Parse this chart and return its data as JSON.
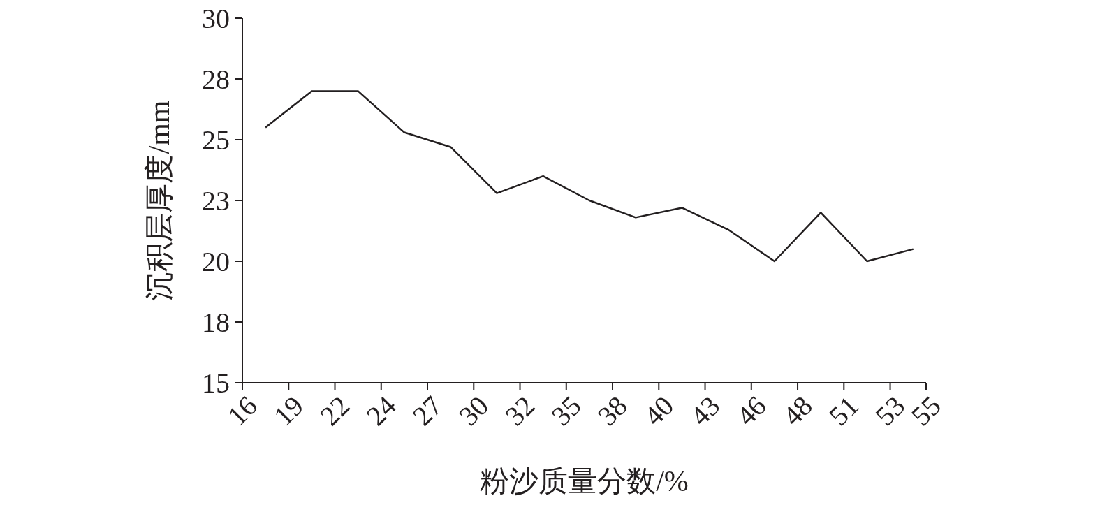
{
  "chart_data": {
    "type": "line",
    "xlabel": "粉沙质量分数/%",
    "ylabel": "沉积层厚度/mm",
    "color": "#231f20",
    "x": [
      17.8,
      20.44,
      23.08,
      25.72,
      28.36,
      31.0,
      33.64,
      36.28,
      38.92,
      41.56,
      44.2,
      46.84,
      49.48,
      52.12,
      54.76
    ],
    "values": [
      25.5,
      27.0,
      27.0,
      25.3,
      24.7,
      22.8,
      23.5,
      22.5,
      21.8,
      22.2,
      21.3,
      20.0,
      22.0,
      20.0,
      20.5
    ],
    "xlim": [
      16.48,
      55.49
    ],
    "xticks": [
      {
        "value": 16.48,
        "label": "16"
      },
      {
        "value": 19.12,
        "label": "19"
      },
      {
        "value": 21.76,
        "label": "22"
      },
      {
        "value": 24.4,
        "label": "24"
      },
      {
        "value": 27.04,
        "label": "27"
      },
      {
        "value": 29.68,
        "label": "30"
      },
      {
        "value": 32.32,
        "label": "32"
      },
      {
        "value": 34.96,
        "label": "35"
      },
      {
        "value": 37.6,
        "label": "38"
      },
      {
        "value": 40.24,
        "label": "40"
      },
      {
        "value": 42.88,
        "label": "43"
      },
      {
        "value": 45.52,
        "label": "46"
      },
      {
        "value": 48.16,
        "label": "48"
      },
      {
        "value": 50.8,
        "label": "51"
      },
      {
        "value": 53.44,
        "label": "53"
      },
      {
        "value": 55.49,
        "label": "55"
      }
    ],
    "ylim": [
      15,
      30
    ],
    "yticks": [
      {
        "value": 15,
        "label": "15"
      },
      {
        "value": 17.5,
        "label": "18"
      },
      {
        "value": 20,
        "label": "20"
      },
      {
        "value": 22.5,
        "label": "23"
      },
      {
        "value": 25,
        "label": "25"
      },
      {
        "value": 27.5,
        "label": "28"
      },
      {
        "value": 30,
        "label": "30"
      }
    ]
  }
}
